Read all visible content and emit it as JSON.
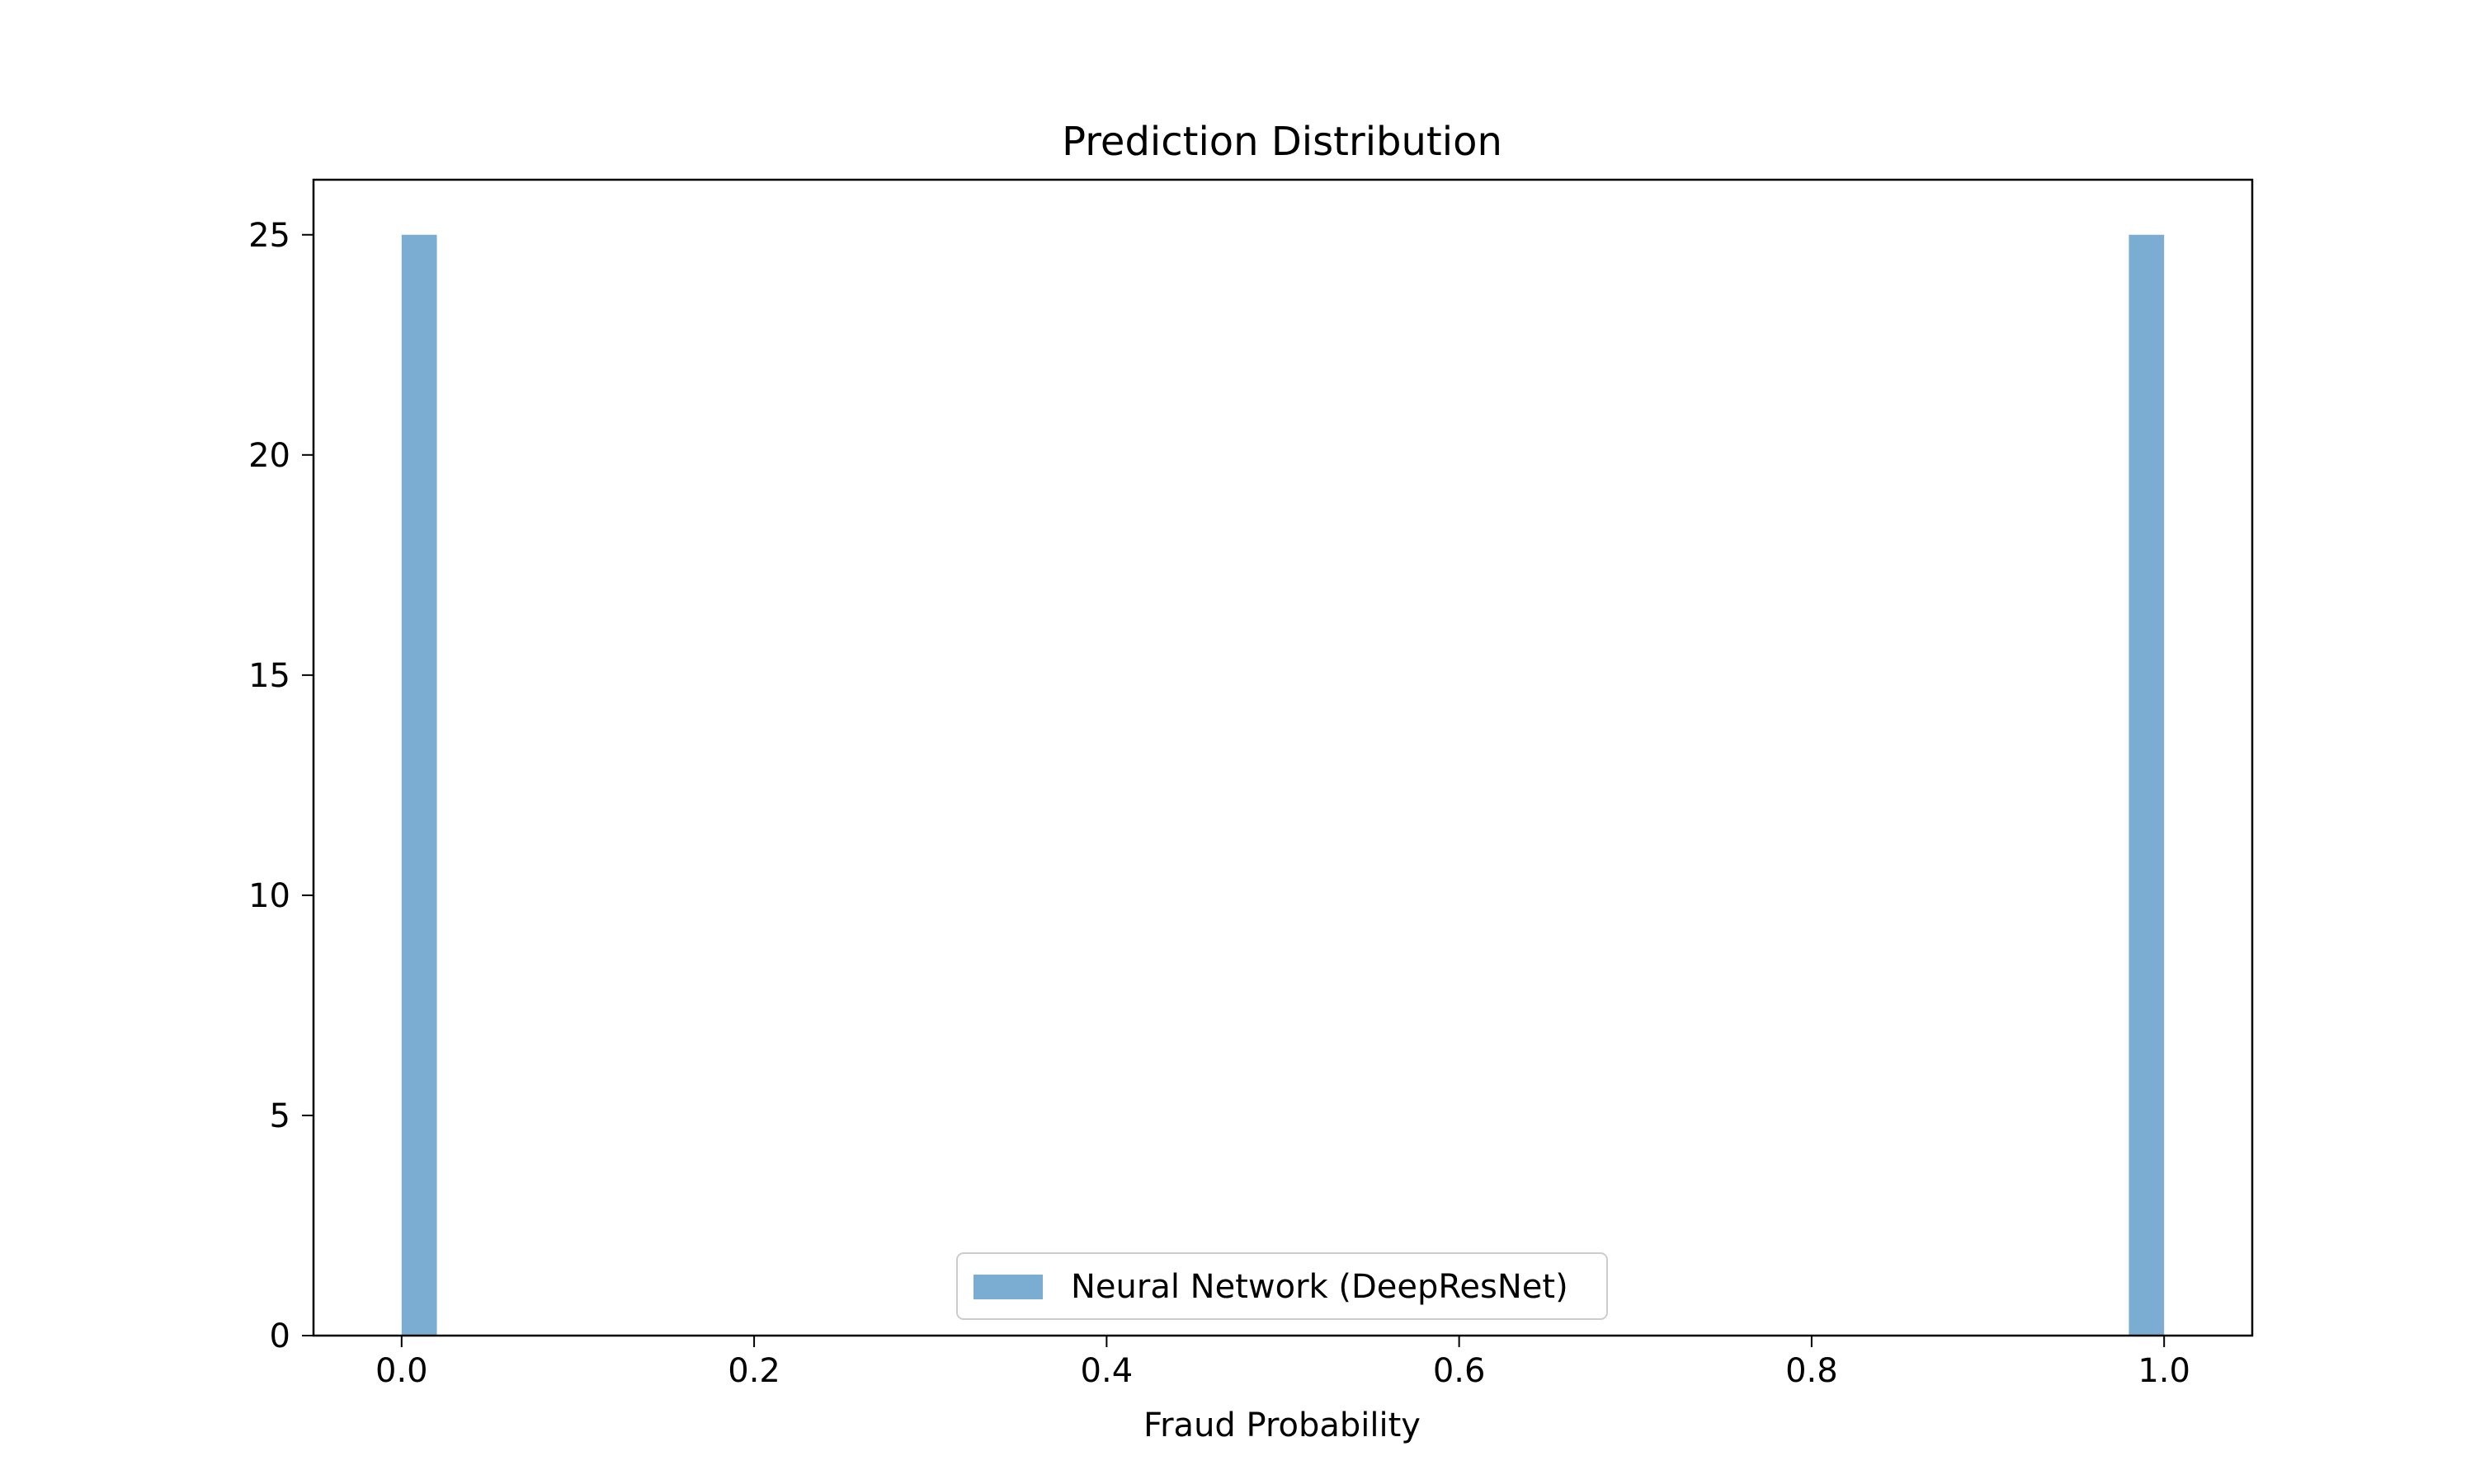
{
  "chart_data": {
    "type": "bar",
    "title": "Prediction Distribution",
    "xlabel": "Fraud Probability",
    "ylabel": "",
    "xlim": [
      -0.05,
      1.05
    ],
    "ylim": [
      0,
      26.25
    ],
    "xticks": [
      0.0,
      0.2,
      0.4,
      0.6,
      0.8,
      1.0
    ],
    "xtick_labels": [
      "0.0",
      "0.2",
      "0.4",
      "0.6",
      "0.8",
      "1.0"
    ],
    "yticks": [
      0,
      5,
      10,
      15,
      20,
      25
    ],
    "ytick_labels": [
      "0",
      "5",
      "10",
      "15",
      "20",
      "25"
    ],
    "grid": false,
    "legend_position": "lower center",
    "series": [
      {
        "name": "Neural Network (DeepResNet)",
        "color": "#7aadd1",
        "bins": [
          {
            "x0": 0.0,
            "x1": 0.02,
            "count": 25
          },
          {
            "x0": 0.98,
            "x1": 1.0,
            "count": 25
          }
        ]
      }
    ]
  }
}
